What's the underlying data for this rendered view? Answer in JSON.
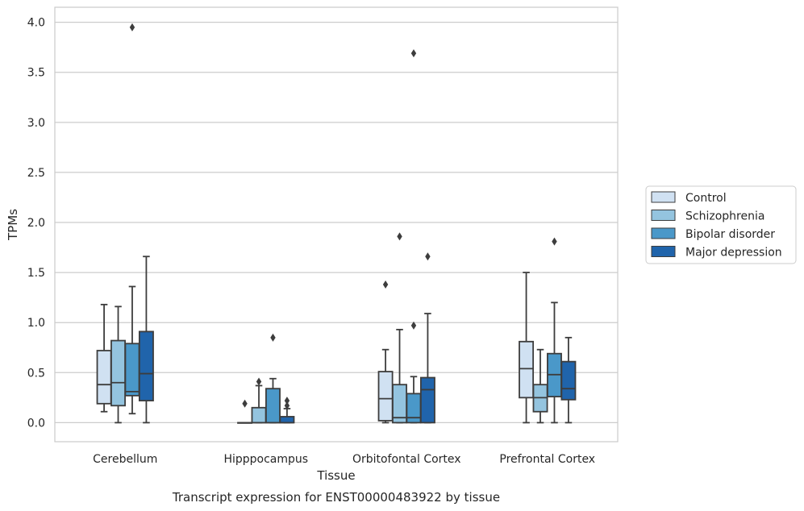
{
  "chart_data": {
    "type": "box",
    "caption": "Transcript expression for ENST00000483922 by tissue",
    "xlabel": "Tissue",
    "ylabel": "TPMs",
    "ylim": [
      -0.19,
      4.15
    ],
    "yticks": [
      "0.0",
      "0.5",
      "1.0",
      "1.5",
      "2.0",
      "2.5",
      "3.0",
      "3.5",
      "4.0"
    ],
    "grid": "horizontal",
    "legend_position": "right",
    "categories": [
      "Cerebellum",
      "Hipppocampus",
      "Orbitofontal Cortex",
      "Prefrontal Cortex"
    ],
    "series": [
      {
        "name": "Control",
        "color": "#d0e1f2",
        "boxes": [
          {
            "whisker_low": 0.11,
            "q1": 0.19,
            "median": 0.38,
            "q3": 0.72,
            "whisker_high": 1.18,
            "outliers": []
          },
          {
            "whisker_low": 0.0,
            "q1": 0.0,
            "median": 0.0,
            "q3": 0.0,
            "whisker_high": 0.0,
            "outliers": [
              0.19
            ]
          },
          {
            "whisker_low": 0.0,
            "q1": 0.02,
            "median": 0.24,
            "q3": 0.51,
            "whisker_high": 0.73,
            "outliers": [
              1.38
            ]
          },
          {
            "whisker_low": 0.0,
            "q1": 0.25,
            "median": 0.54,
            "q3": 0.81,
            "whisker_high": 1.5,
            "outliers": []
          }
        ]
      },
      {
        "name": "Schizophrenia",
        "color": "#94c4df",
        "boxes": [
          {
            "whisker_low": 0.0,
            "q1": 0.17,
            "median": 0.4,
            "q3": 0.82,
            "whisker_high": 1.16,
            "outliers": []
          },
          {
            "whisker_low": 0.0,
            "q1": 0.0,
            "median": 0.0,
            "q3": 0.15,
            "whisker_high": 0.37,
            "outliers": [
              0.41
            ]
          },
          {
            "whisker_low": 0.0,
            "q1": 0.0,
            "median": 0.05,
            "q3": 0.38,
            "whisker_high": 0.93,
            "outliers": [
              1.86
            ]
          },
          {
            "whisker_low": 0.0,
            "q1": 0.11,
            "median": 0.25,
            "q3": 0.38,
            "whisker_high": 0.73,
            "outliers": []
          }
        ]
      },
      {
        "name": "Bipolar disorder",
        "color": "#4a98c9",
        "boxes": [
          {
            "whisker_low": 0.09,
            "q1": 0.27,
            "median": 0.31,
            "q3": 0.79,
            "whisker_high": 1.36,
            "outliers": [
              3.95
            ]
          },
          {
            "whisker_low": 0.0,
            "q1": 0.0,
            "median": 0.0,
            "q3": 0.34,
            "whisker_high": 0.44,
            "outliers": [
              0.85
            ]
          },
          {
            "whisker_low": 0.0,
            "q1": 0.0,
            "median": 0.05,
            "q3": 0.29,
            "whisker_high": 0.46,
            "outliers": [
              0.97,
              3.69
            ]
          },
          {
            "whisker_low": 0.0,
            "q1": 0.26,
            "median": 0.48,
            "q3": 0.69,
            "whisker_high": 1.2,
            "outliers": [
              1.81
            ]
          }
        ]
      },
      {
        "name": "Major depression",
        "color": "#2064ab",
        "boxes": [
          {
            "whisker_low": 0.0,
            "q1": 0.22,
            "median": 0.49,
            "q3": 0.91,
            "whisker_high": 1.66,
            "outliers": []
          },
          {
            "whisker_low": 0.0,
            "q1": 0.0,
            "median": 0.0,
            "q3": 0.06,
            "whisker_high": 0.14,
            "outliers": [
              0.17,
              0.22
            ]
          },
          {
            "whisker_low": 0.0,
            "q1": 0.0,
            "median": 0.33,
            "q3": 0.45,
            "whisker_high": 1.09,
            "outliers": [
              1.66
            ]
          },
          {
            "whisker_low": 0.0,
            "q1": 0.23,
            "median": 0.34,
            "q3": 0.61,
            "whisker_high": 0.85,
            "outliers": []
          }
        ]
      }
    ]
  }
}
